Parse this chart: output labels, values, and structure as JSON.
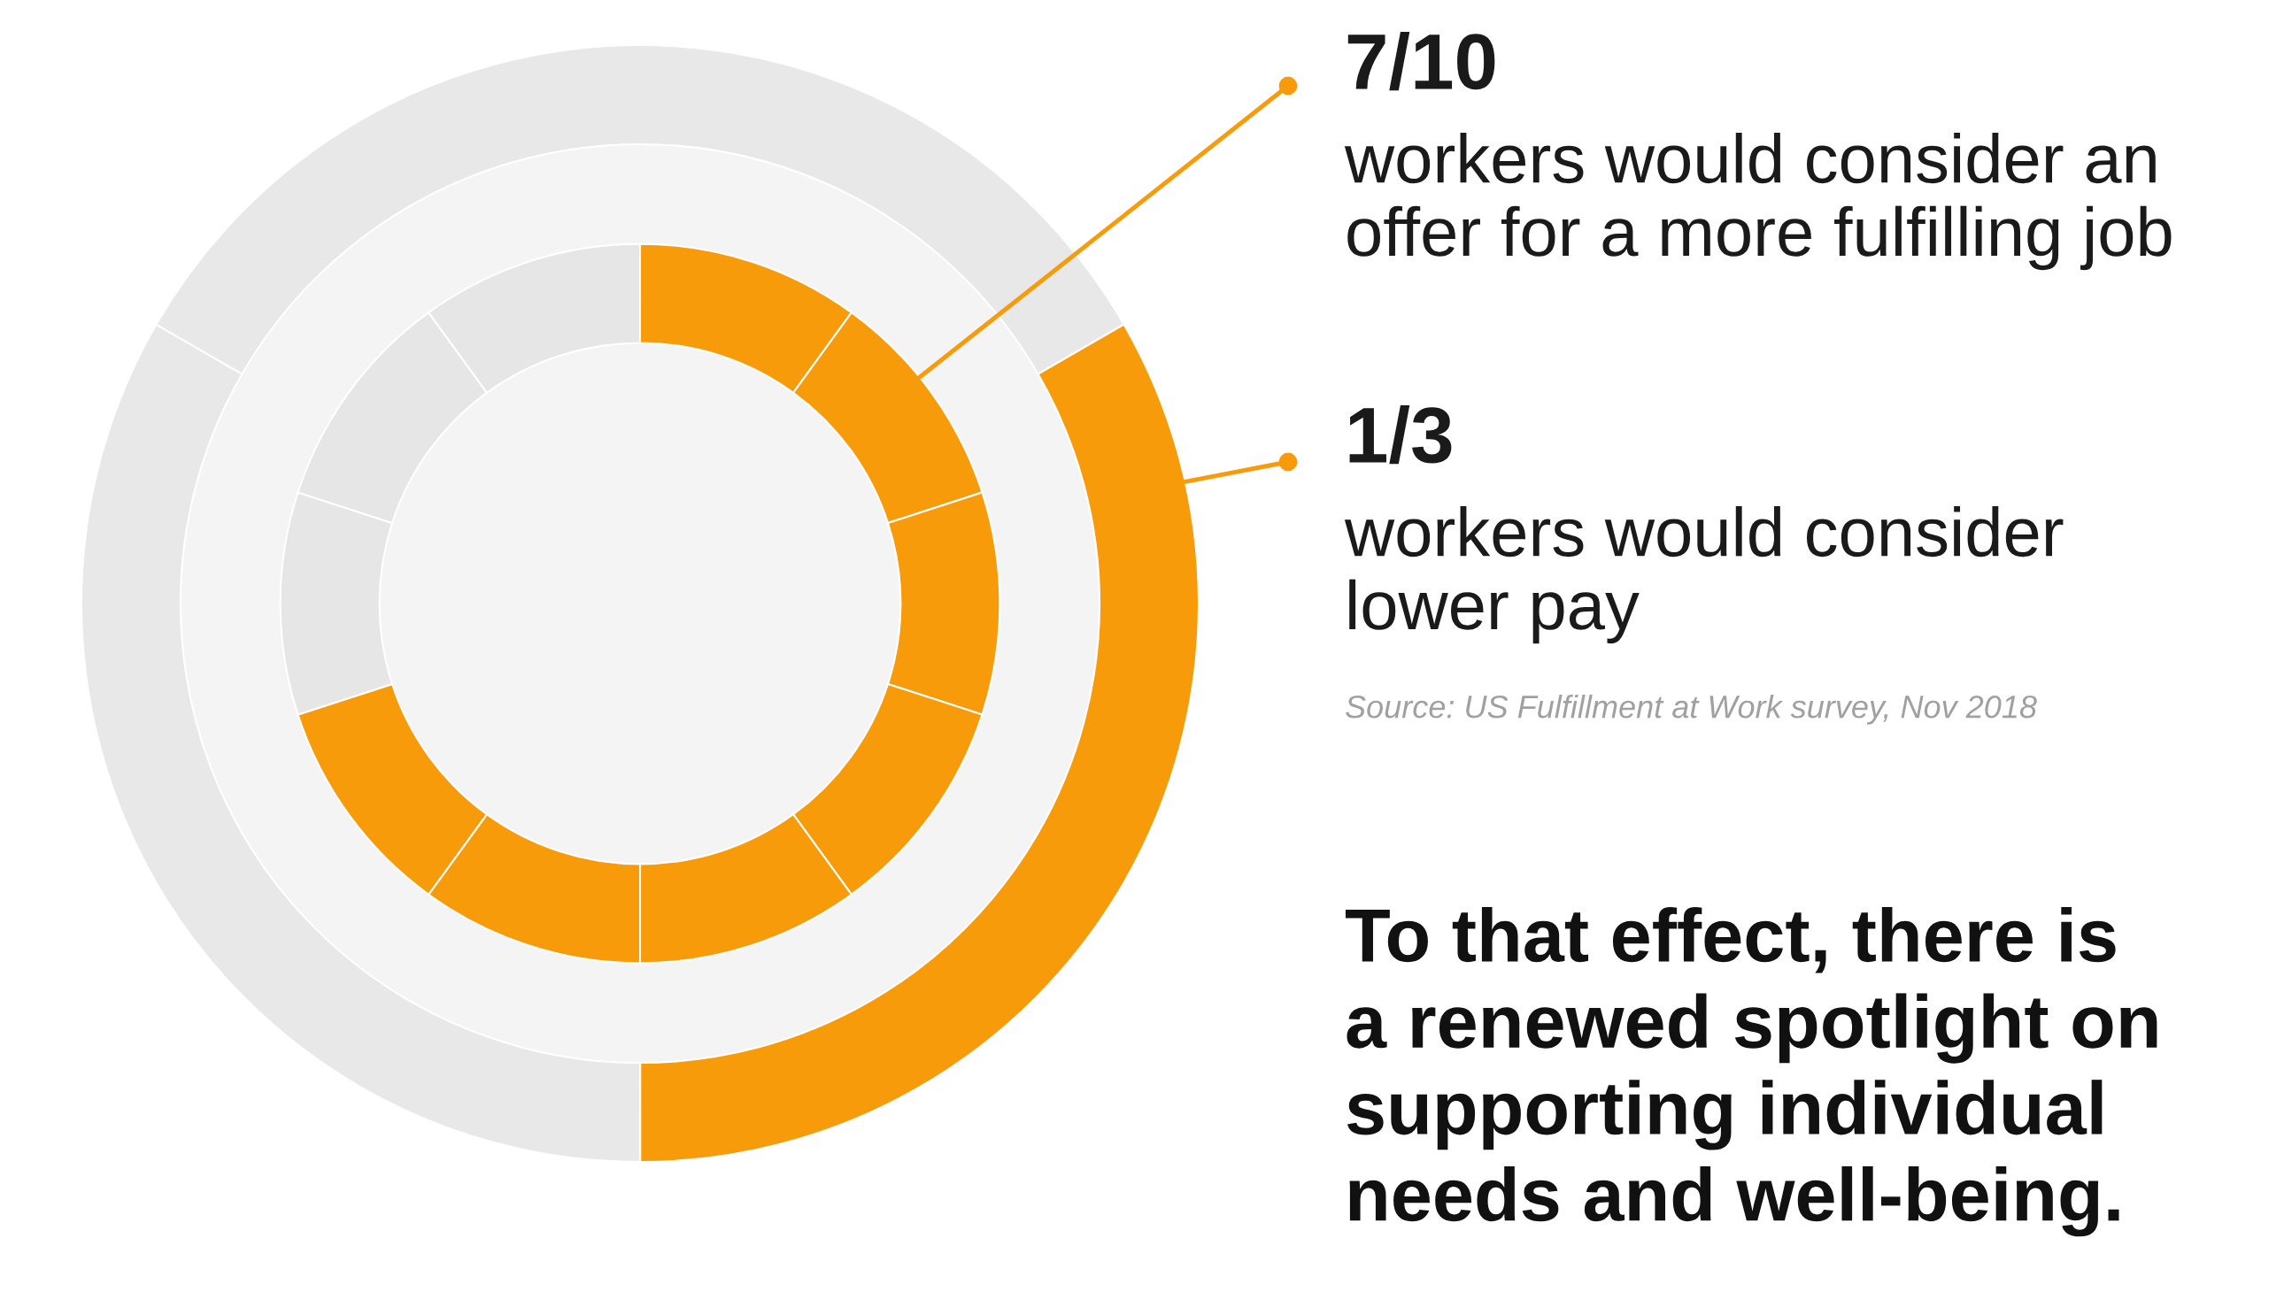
{
  "chart_data": {
    "type": "donut",
    "series": [
      {
        "values": [
          10,
          10,
          10,
          10,
          10,
          10,
          10,
          10,
          10,
          10
        ],
        "colors": [
          "#f79b0b",
          "#f79b0b",
          "#f79b0b",
          "#f79b0b",
          "#f79b0b",
          "#f79b0b",
          "#f79b0b",
          "#e6e6e6",
          "#e6e6e6",
          "#e6e6e6"
        ]
      },
      {
        "values": [
          33.33,
          33.33,
          33.34
        ],
        "colors": [
          "#f79b0b",
          "#e8e8e8",
          "#e8e8e8"
        ]
      }
    ],
    "annotations": [
      "7/10",
      "workers would consider an\noffer for a more fulfilling job",
      "1/3",
      "workers would consider\nlower pay",
      "Source: US Fulfillment at Work survey, Nov 2018",
      "To that effect, there is\na renewed spotlight on\nsupporting individual\nneeds and well-being."
    ]
  }
}
